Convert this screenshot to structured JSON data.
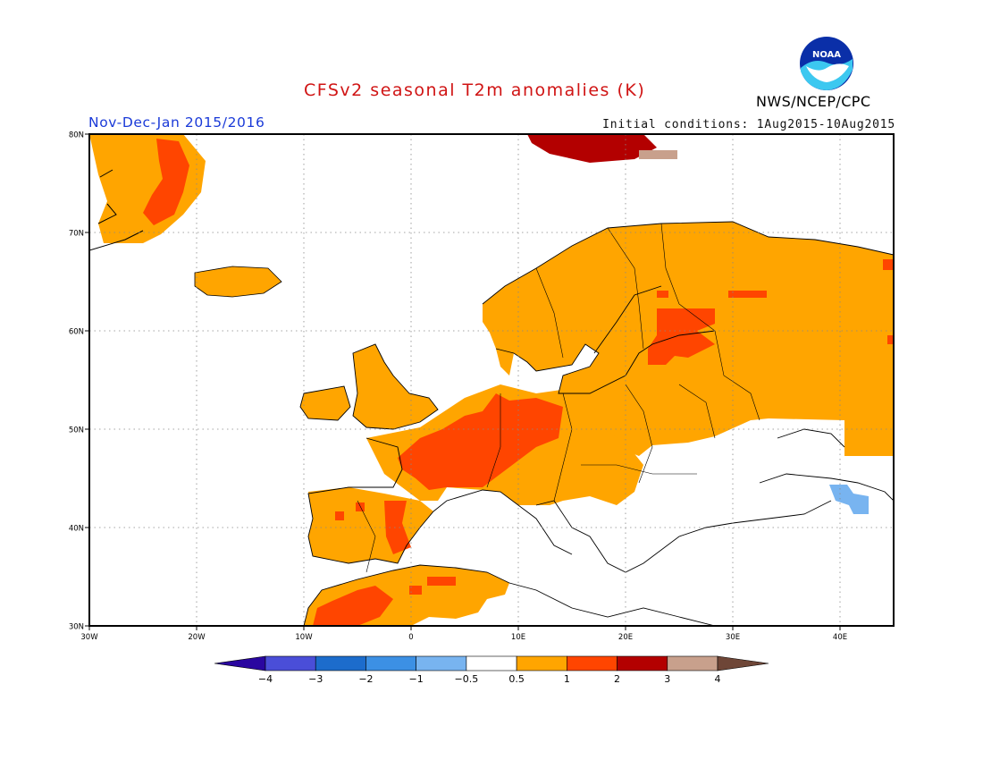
{
  "title": "CFSv2 seasonal T2m anomalies (K)",
  "period": "Nov-Dec-Jan 2015/2016",
  "initial_conditions": "Initial conditions: 1Aug2015-10Aug2015",
  "agency": "NWS/NCEP/CPC",
  "logo_text": "NOAA",
  "map": {
    "projection": "lat-lon",
    "lon_range": [
      -30,
      45
    ],
    "lat_range": [
      30,
      80
    ],
    "lat_ticks": [
      "30N",
      "40N",
      "50N",
      "60N",
      "70N",
      "80N"
    ],
    "lon_ticks": [
      "30W",
      "20W",
      "10W",
      "0",
      "10E",
      "20E",
      "30E",
      "40E"
    ],
    "gridlines": true,
    "regions": [
      {
        "name": "Scandinavia and Russia",
        "category": "0.5-1",
        "color": "#ffa500"
      },
      {
        "name": "France and Central Europe",
        "category": "1-2",
        "color": "#ff4500"
      },
      {
        "name": "Iberia and North Africa",
        "category": "1-2",
        "color": "#ff4500"
      },
      {
        "name": "Svalbard",
        "category": "2-3",
        "color": "#b30000"
      },
      {
        "name": "Caucasus",
        "category": "-1 to -0.5",
        "color": "#78b4f0"
      },
      {
        "name": "Mediterranean and Balkans",
        "category": "-0.5-0.5",
        "color": "#ffffff"
      }
    ]
  },
  "colorbar": {
    "labels": [
      "-4",
      "-3",
      "-2",
      "-1",
      "-0.5",
      "0.5",
      "1",
      "2",
      "3",
      "4"
    ],
    "colors": [
      "#2a06a0",
      "#4a4ed8",
      "#1c6ccc",
      "#3c90e4",
      "#78b4f0",
      "#ffffff",
      "#ffa500",
      "#ff4500",
      "#b30000",
      "#c8a08c",
      "#6e4637"
    ]
  }
}
